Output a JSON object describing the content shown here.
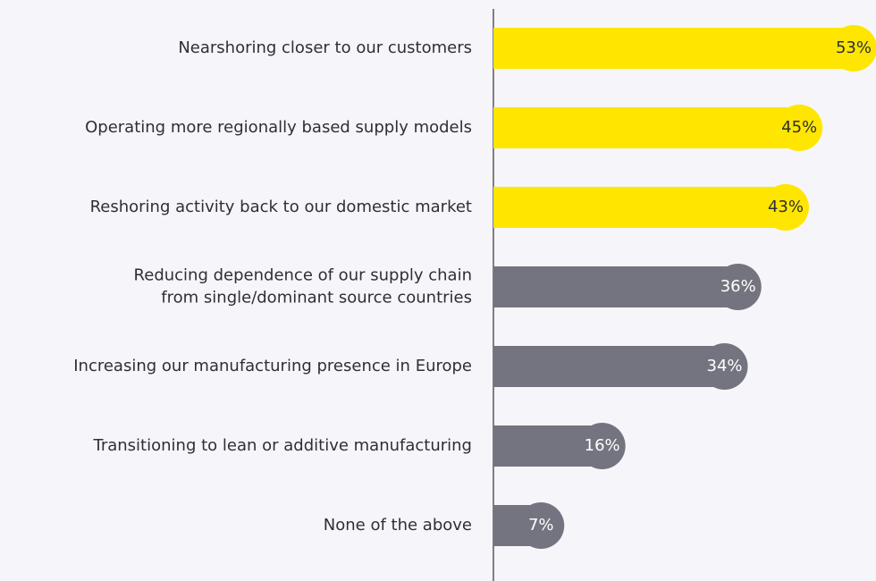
{
  "chart_data": {
    "type": "bar",
    "orientation": "horizontal",
    "categories": [
      "Nearshoring closer to our customers",
      "Operating more regionally based supply models",
      "Reshoring activity back to our domestic market",
      "Reducing dependence of our supply chain\nfrom single/dominant source countries",
      "Increasing our manufacturing presence in Europe",
      "Transitioning to lean or additive manufacturing",
      "None of the above"
    ],
    "values": [
      53,
      45,
      43,
      36,
      34,
      16,
      7
    ],
    "value_labels": [
      "53%",
      "45%",
      "43%",
      "36%",
      "34%",
      "16%",
      "7%"
    ],
    "colors": [
      "#ffe600",
      "#ffe600",
      "#ffe600",
      "#747480",
      "#747480",
      "#747480",
      "#747480"
    ]
  }
}
